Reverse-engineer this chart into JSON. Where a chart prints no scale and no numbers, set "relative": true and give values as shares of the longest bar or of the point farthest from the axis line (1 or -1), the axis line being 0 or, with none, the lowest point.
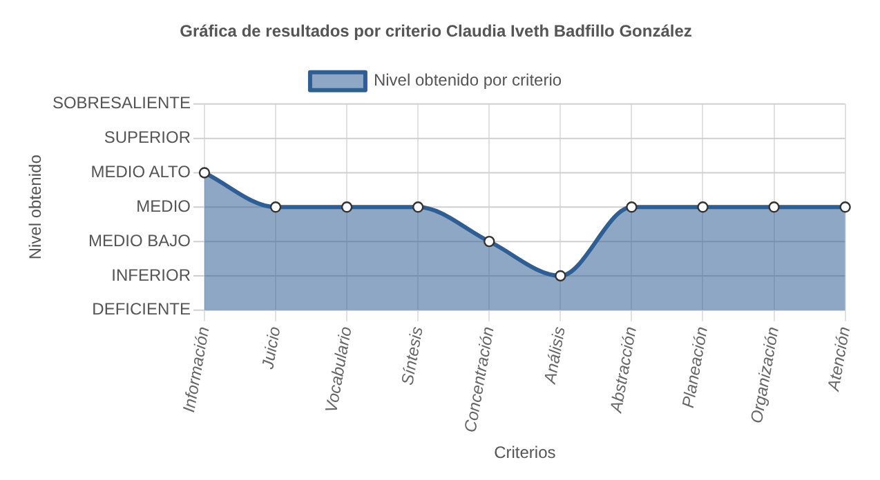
{
  "chart_data": {
    "type": "area",
    "title": "Gráfica de resultados por criterio Claudia Iveth Badfillo González",
    "xlabel": "Criterios",
    "categories": [
      "Información",
      "Juicio",
      "Vocabulario",
      "Síntesis",
      "Concentración",
      "Análisis",
      "Abstracción",
      "Planeación",
      "Organización",
      "Atención"
    ],
    "series": [
      {
        "name": "Nivel obtenido por criterio",
        "color": "#2f5e94",
        "values": [
          1,
          0.75,
          0.75,
          0.75,
          0.5,
          0.25,
          0.75,
          0.75,
          0.75,
          0.75
        ]
      }
    ],
    "relative": true,
    "annotations": [
      "DEFICIENTE",
      "INFERIOR",
      "MEDIO BAJO",
      "MEDIO",
      "MEDIO ALTO",
      "SUPERIOR",
      "SOBRESALIENTE",
      "Nivel obtenido"
    ],
    "grid": true,
    "legend": "top",
    "marker": "circle",
    "line_style": "solid"
  }
}
